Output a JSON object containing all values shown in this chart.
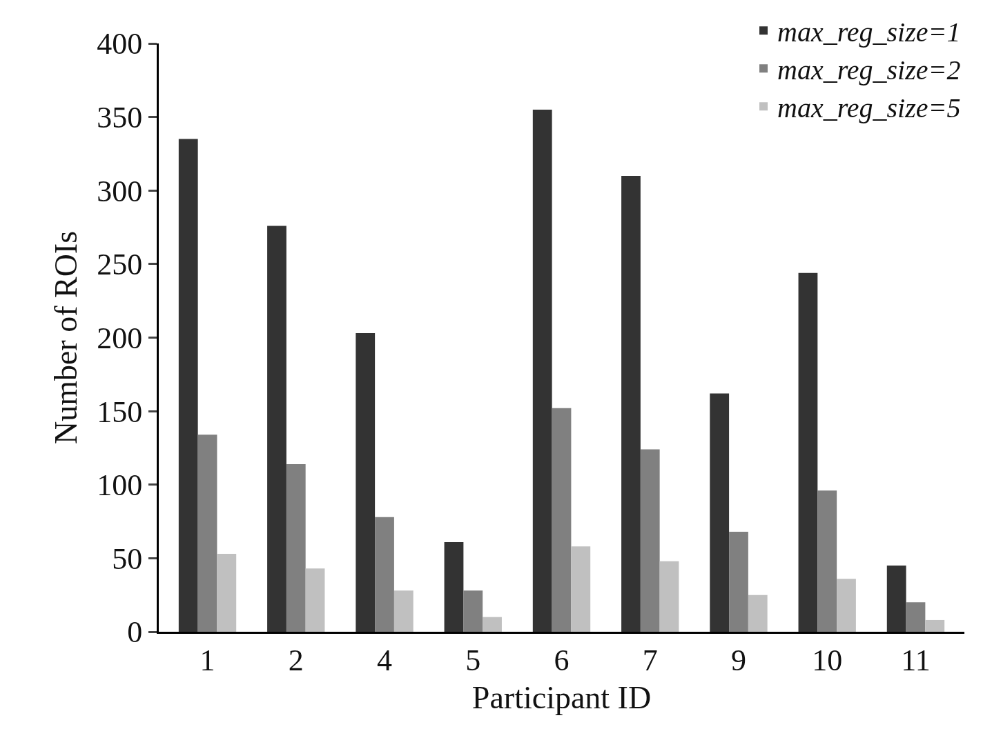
{
  "chart_data": {
    "type": "bar",
    "xlabel": "Participant ID",
    "ylabel": "Number of ROIs",
    "categories": [
      "1",
      "2",
      "4",
      "5",
      "6",
      "7",
      "9",
      "10",
      "11"
    ],
    "series": [
      {
        "name": "max_reg_size=1",
        "color": "#333333",
        "values": [
          335,
          276,
          203,
          61,
          355,
          310,
          162,
          244,
          45
        ]
      },
      {
        "name": "max_reg_size=2",
        "color": "#808080",
        "values": [
          134,
          114,
          78,
          28,
          152,
          124,
          68,
          96,
          20
        ]
      },
      {
        "name": "max_reg_size=5",
        "color": "#c0c0c0",
        "values": [
          53,
          43,
          28,
          10,
          58,
          48,
          25,
          36,
          8
        ]
      }
    ],
    "ylim": [
      0,
      400
    ],
    "yticks": [
      0,
      50,
      100,
      150,
      200,
      250,
      300,
      350,
      400
    ],
    "legend": "top right"
  }
}
